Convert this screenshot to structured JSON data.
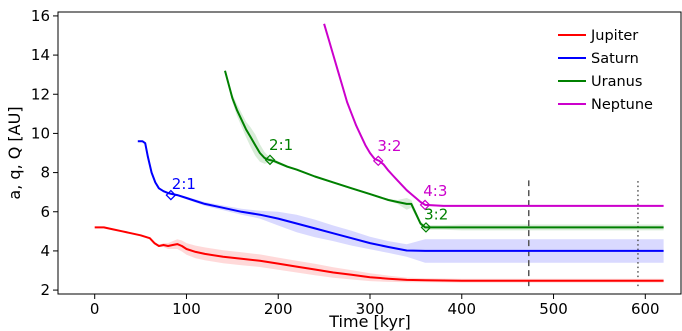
{
  "chart_data": {
    "type": "line",
    "xlabel": "Time [kyr]",
    "ylabel": "a, q, Q [AU]",
    "xlim": [
      -40,
      640
    ],
    "ylim": [
      1.8,
      16.2
    ],
    "xticks": [
      0,
      100,
      200,
      300,
      400,
      500,
      600
    ],
    "yticks": [
      2,
      4,
      6,
      8,
      10,
      12,
      14,
      16
    ],
    "grid": false,
    "legend": "top-right",
    "series": [
      {
        "name": "Jupiter",
        "color": "#ff0000",
        "x": [
          0,
          10,
          20,
          30,
          40,
          50,
          60,
          65,
          70,
          75,
          80,
          85,
          90,
          95,
          100,
          110,
          120,
          140,
          160,
          180,
          200,
          220,
          240,
          260,
          280,
          300,
          320,
          340,
          360,
          400,
          450,
          500,
          550,
          600,
          620
        ],
        "y": [
          5.2,
          5.2,
          5.1,
          5.0,
          4.9,
          4.8,
          4.65,
          4.4,
          4.25,
          4.3,
          4.25,
          4.3,
          4.35,
          4.25,
          4.1,
          3.95,
          3.85,
          3.7,
          3.6,
          3.5,
          3.35,
          3.2,
          3.05,
          2.9,
          2.78,
          2.66,
          2.58,
          2.52,
          2.5,
          2.48,
          2.48,
          2.48,
          2.48,
          2.48,
          2.48
        ],
        "band": [
          0,
          0,
          0,
          0,
          0,
          0,
          0,
          0,
          0.05,
          0.1,
          0.15,
          0.2,
          0.25,
          0.28,
          0.3,
          0.32,
          0.33,
          0.33,
          0.33,
          0.32,
          0.31,
          0.3,
          0.29,
          0.27,
          0.24,
          0.2,
          0.16,
          0.12,
          0.1,
          0.1,
          0.1,
          0.1,
          0.1,
          0.1,
          0.1
        ]
      },
      {
        "name": "Saturn",
        "color": "#0000ff",
        "x": [
          47,
          52,
          55,
          58,
          62,
          66,
          70,
          75,
          80,
          85,
          90,
          100,
          110,
          120,
          140,
          160,
          180,
          200,
          220,
          240,
          260,
          280,
          300,
          320,
          340,
          360,
          400,
          450,
          500,
          550,
          600,
          620
        ],
        "y": [
          9.6,
          9.6,
          9.5,
          8.8,
          8.0,
          7.5,
          7.2,
          7.05,
          6.95,
          6.9,
          6.85,
          6.7,
          6.55,
          6.4,
          6.2,
          6.0,
          5.85,
          5.65,
          5.4,
          5.15,
          4.9,
          4.65,
          4.4,
          4.2,
          4.02,
          4.0,
          4.0,
          4.0,
          4.0,
          4.0,
          4.0,
          4.0
        ],
        "band": [
          0,
          0,
          0,
          0,
          0,
          0,
          0.05,
          0.05,
          0.05,
          0.05,
          0.05,
          0.07,
          0.08,
          0.1,
          0.12,
          0.15,
          0.2,
          0.35,
          0.45,
          0.45,
          0.4,
          0.38,
          0.32,
          0.3,
          0.32,
          0.6,
          0.6,
          0.6,
          0.6,
          0.6,
          0.6,
          0.6
        ]
      },
      {
        "name": "Uranus",
        "color": "#008000",
        "x": [
          142,
          146,
          150,
          155,
          160,
          165,
          170,
          175,
          180,
          185,
          190,
          195,
          200,
          210,
          220,
          240,
          260,
          280,
          300,
          320,
          330,
          340,
          345,
          350,
          355,
          360,
          380,
          400,
          450,
          500,
          550,
          600,
          620
        ],
        "y": [
          13.2,
          12.5,
          11.8,
          11.2,
          10.7,
          10.2,
          9.8,
          9.4,
          9.0,
          8.75,
          8.65,
          8.6,
          8.5,
          8.3,
          8.15,
          7.8,
          7.5,
          7.2,
          6.9,
          6.6,
          6.5,
          6.4,
          6.4,
          5.9,
          5.4,
          5.2,
          5.2,
          5.2,
          5.2,
          5.2,
          5.2,
          5.2,
          5.2
        ],
        "band": [
          0.05,
          0.1,
          0.2,
          0.3,
          0.35,
          0.4,
          0.5,
          0.55,
          0.45,
          0.3,
          0.15,
          0.1,
          0.08,
          0.06,
          0.05,
          0.05,
          0.05,
          0.05,
          0.05,
          0.05,
          0.1,
          0.3,
          0.2,
          0.15,
          0.12,
          0.12,
          0.12,
          0.15,
          0.15,
          0.15,
          0.15,
          0.15,
          0.15
        ]
      },
      {
        "name": "Neptune",
        "color": "#cc00cc",
        "x": [
          250,
          255,
          260,
          265,
          270,
          275,
          280,
          285,
          290,
          295,
          300,
          305,
          310,
          315,
          320,
          325,
          330,
          335,
          340,
          345,
          350,
          355,
          360,
          380,
          400,
          450,
          500,
          550,
          600,
          620
        ],
        "y": [
          15.6,
          14.8,
          14.0,
          13.2,
          12.4,
          11.6,
          11.0,
          10.4,
          9.9,
          9.4,
          9.0,
          8.7,
          8.6,
          8.4,
          8.1,
          7.85,
          7.6,
          7.35,
          7.1,
          6.9,
          6.7,
          6.5,
          6.35,
          6.3,
          6.3,
          6.3,
          6.3,
          6.3,
          6.3,
          6.3
        ],
        "band": [
          0,
          0,
          0,
          0,
          0,
          0,
          0,
          0,
          0,
          0,
          0,
          0,
          0,
          0,
          0,
          0,
          0,
          0,
          0,
          0,
          0,
          0,
          0.05,
          0.05,
          0.05,
          0.05,
          0.05,
          0.05,
          0.05,
          0.05
        ]
      }
    ],
    "markers": [
      {
        "x": 83,
        "y": 6.85,
        "color": "#0000ff"
      },
      {
        "x": 191,
        "y": 8.65,
        "color": "#008000"
      },
      {
        "x": 309,
        "y": 8.6,
        "color": "#cc00cc"
      },
      {
        "x": 360,
        "y": 6.35,
        "color": "#cc00cc"
      },
      {
        "x": 361,
        "y": 5.2,
        "color": "#008000"
      }
    ],
    "annotations": [
      {
        "text": "2:1",
        "x": 84,
        "y": 7.15,
        "color": "#0000ff"
      },
      {
        "text": "2:1",
        "x": 190,
        "y": 9.15,
        "color": "#008000"
      },
      {
        "text": "3:2",
        "x": 308,
        "y": 9.1,
        "color": "#cc00cc"
      },
      {
        "text": "4:3",
        "x": 358,
        "y": 6.8,
        "color": "#cc00cc"
      },
      {
        "text": "3:2",
        "x": 359,
        "y": 5.6,
        "color": "#008000"
      }
    ],
    "vlines": [
      {
        "x": 473,
        "ymin": 2.2,
        "ymax": 7.6,
        "style": "dashed",
        "color": "#555555"
      },
      {
        "x": 592,
        "ymin": 2.2,
        "ymax": 7.6,
        "style": "dotted",
        "color": "#555555"
      }
    ]
  }
}
